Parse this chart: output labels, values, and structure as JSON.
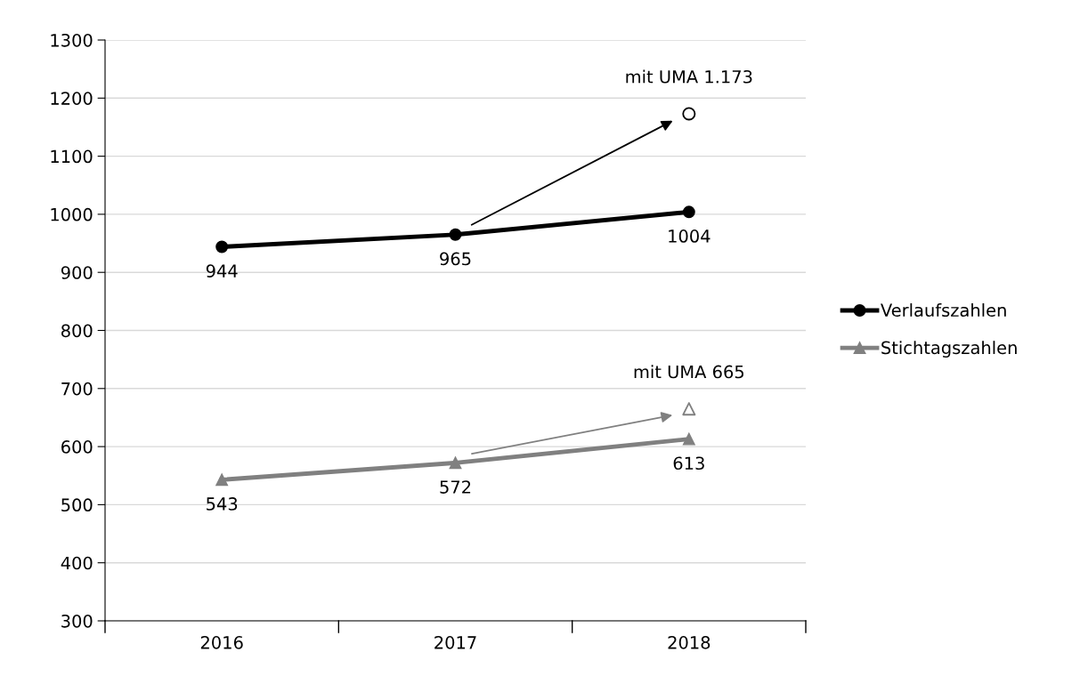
{
  "chart_data": {
    "type": "line",
    "categories": [
      "2016",
      "2017",
      "2018"
    ],
    "series": [
      {
        "name": "Verlaufszahlen",
        "color": "#000000",
        "values": [
          944,
          965,
          1004
        ],
        "value_labels": [
          "944",
          "965",
          "1004"
        ],
        "marker": "circle"
      },
      {
        "name": "Stichtagszahlen",
        "color": "#808080",
        "values": [
          543,
          572,
          613
        ],
        "value_labels": [
          "543",
          "572",
          "613"
        ],
        "marker": "triangle"
      },
      {
        "type": "scatter",
        "color": "#000000",
        "values": [
          null,
          null,
          1173
        ],
        "value_labels": [
          null,
          null,
          "mit UMA 1.173"
        ],
        "marker": "circle"
      },
      {
        "type": "scatter",
        "color": "#808080",
        "values": [
          null,
          null,
          665
        ],
        "value_labels": [
          null,
          null,
          "mit UMA 665"
        ],
        "marker": "triangle"
      }
    ],
    "ylim": [
      300,
      1300
    ],
    "yticks": [
      300,
      400,
      500,
      600,
      700,
      800,
      900,
      1000,
      1100,
      1200,
      1300
    ],
    "grid": "y",
    "legend": "right"
  }
}
